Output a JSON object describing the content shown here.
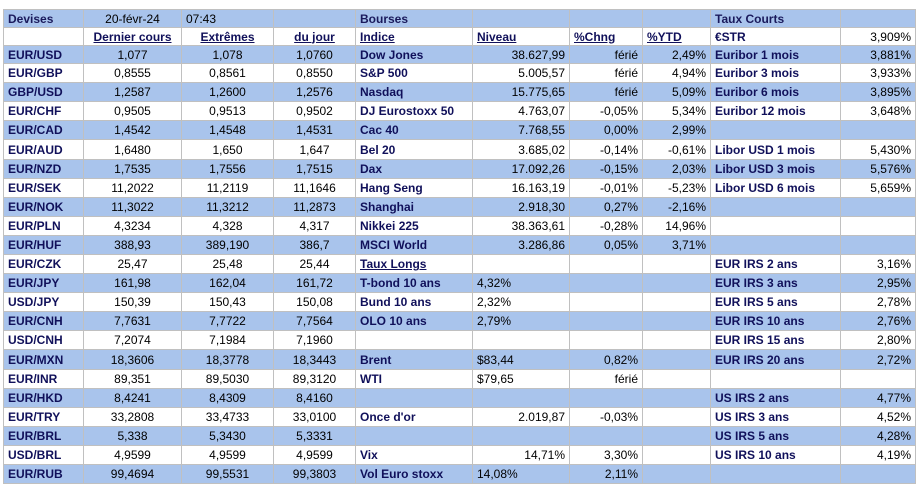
{
  "header": {
    "devises": "Devises",
    "date": "20-févr-24",
    "time": "07:43",
    "bourses": "Bourses",
    "taux_courts": "Taux Courts"
  },
  "subheader": {
    "dernier": "Dernier cours",
    "extremes": "Extrêmes",
    "dujour": "du jour",
    "indice": "Indice",
    "niveau": "Niveau",
    "chng": "%Chng",
    "ytd": "%YTD",
    "estr_label": "€STR",
    "estr_value": "3,909%"
  },
  "rows": [
    {
      "fx": "EUR/USD",
      "last": "1,077",
      "hi": "1,078",
      "lo": "1,0760",
      "idx": "Dow Jones",
      "lvl": "38.627,99",
      "chg": "férié",
      "ytd": "2,49%",
      "rate": "Euribor 1 mois",
      "rval": "3,881%",
      "bg": "blue"
    },
    {
      "fx": "EUR/GBP",
      "last": "0,8555",
      "hi": "0,8561",
      "lo": "0,8550",
      "idx": "S&P 500",
      "lvl": "5.005,57",
      "chg": "férié",
      "ytd": "4,94%",
      "rate": "Euribor 3 mois",
      "rval": "3,933%",
      "bg": "white"
    },
    {
      "fx": "GBP/USD",
      "last": "1,2587",
      "hi": "1,2600",
      "lo": "1,2576",
      "idx": "Nasdaq",
      "lvl": "15.775,65",
      "chg": "férié",
      "ytd": "5,09%",
      "rate": "Euribor 6 mois",
      "rval": "3,895%",
      "bg": "blue"
    },
    {
      "fx": "EUR/CHF",
      "last": "0,9505",
      "hi": "0,9513",
      "lo": "0,9502",
      "idx": "DJ Eurostoxx 50",
      "lvl": "4.763,07",
      "chg": "-0,05%",
      "ytd": "5,34%",
      "rate": "Euribor 12 mois",
      "rval": "3,648%",
      "bg": "white"
    },
    {
      "fx": "EUR/CAD",
      "last": "1,4542",
      "hi": "1,4548",
      "lo": "1,4531",
      "idx": "Cac 40",
      "lvl": "7.768,55",
      "chg": "0,00%",
      "ytd": "2,99%",
      "rate": "",
      "rval": "",
      "bg": "blue"
    },
    {
      "fx": "EUR/AUD",
      "last": "1,6480",
      "hi": "1,650",
      "lo": "1,647",
      "idx": "Bel 20",
      "lvl": "3.685,02",
      "chg": "-0,14%",
      "ytd": "-0,61%",
      "rate": "Libor USD 1 mois",
      "rval": "5,430%",
      "bg": "white"
    },
    {
      "fx": "EUR/NZD",
      "last": "1,7535",
      "hi": "1,7556",
      "lo": "1,7515",
      "idx": "Dax",
      "lvl": "17.092,26",
      "chg": "-0,15%",
      "ytd": "2,03%",
      "rate": "Libor USD 3 mois",
      "rval": "5,576%",
      "bg": "blue"
    },
    {
      "fx": "EUR/SEK",
      "last": "11,2022",
      "hi": "11,2119",
      "lo": "11,1646",
      "idx": "Hang Seng",
      "lvl": "16.163,19",
      "chg": "-0,01%",
      "ytd": "-5,23%",
      "rate": "Libor USD 6 mois",
      "rval": "5,659%",
      "bg": "white"
    },
    {
      "fx": "EUR/NOK",
      "last": "11,3022",
      "hi": "11,3212",
      "lo": "11,2873",
      "idx": "Shanghai",
      "lvl": "2.918,30",
      "chg": "0,27%",
      "ytd": "-2,16%",
      "rate": "",
      "rval": "",
      "bg": "blue"
    },
    {
      "fx": "EUR/PLN",
      "last": "4,3234",
      "hi": "4,328",
      "lo": "4,317",
      "idx": "Nikkei 225",
      "lvl": "38.363,61",
      "chg": "-0,28%",
      "ytd": "14,96%",
      "rate": "",
      "rval": "",
      "bg": "white"
    },
    {
      "fx": "EUR/HUF",
      "last": "388,93",
      "hi": "389,190",
      "lo": "386,7",
      "idx": "MSCI World",
      "lvl": "3.286,86",
      "chg": "0,05%",
      "ytd": "3,71%",
      "rate": "",
      "rval": "",
      "bg": "blue"
    },
    {
      "fx": "EUR/CZK",
      "last": "25,47",
      "hi": "25,48",
      "lo": "25,44",
      "idx": "Taux Longs",
      "lvl": "",
      "chg": "",
      "ytd": "",
      "rate": "EUR IRS 2 ans",
      "rval": "3,16%",
      "bg": "white",
      "idx_u": true
    },
    {
      "fx": "EUR/JPY",
      "last": "161,98",
      "hi": "162,04",
      "lo": "161,72",
      "idx": "T-bond 10 ans",
      "lvl": "4,32%",
      "chg": "",
      "ytd": "",
      "rate": "EUR IRS 3 ans",
      "rval": "2,95%",
      "bg": "blue",
      "lvl_left": true
    },
    {
      "fx": "USD/JPY",
      "last": "150,39",
      "hi": "150,43",
      "lo": "150,08",
      "idx": "Bund 10 ans",
      "lvl": "2,32%",
      "chg": "",
      "ytd": "",
      "rate": "EUR IRS 5 ans",
      "rval": "2,78%",
      "bg": "white",
      "lvl_left": true
    },
    {
      "fx": "EUR/CNH",
      "last": "7,7631",
      "hi": "7,7722",
      "lo": "7,7564",
      "idx": "OLO 10 ans",
      "lvl": "2,79%",
      "chg": "",
      "ytd": "",
      "rate": "EUR IRS 10 ans",
      "rval": "2,76%",
      "bg": "blue",
      "lvl_left": true
    },
    {
      "fx": "USD/CNH",
      "last": "7,2074",
      "hi": "7,1984",
      "lo": "7,1960",
      "idx": "",
      "lvl": "",
      "chg": "",
      "ytd": "",
      "rate": "EUR IRS 15 ans",
      "rval": "2,80%",
      "bg": "white"
    },
    {
      "fx": "EUR/MXN",
      "last": "18,3606",
      "hi": "18,3778",
      "lo": "18,3443",
      "idx": "Brent",
      "lvl": "$83,44",
      "chg": "0,82%",
      "ytd": "",
      "rate": "EUR IRS 20 ans",
      "rval": "2,72%",
      "bg": "blue",
      "lvl_left": true
    },
    {
      "fx": "EUR/INR",
      "last": "89,351",
      "hi": "89,5030",
      "lo": "89,3120",
      "idx": "WTI",
      "lvl": "$79,65",
      "chg": "férié",
      "ytd": "",
      "rate": "",
      "rval": "",
      "bg": "white",
      "lvl_left": true
    },
    {
      "fx": "EUR/HKD",
      "last": "8,4241",
      "hi": "8,4309",
      "lo": "8,4160",
      "idx": "",
      "lvl": "",
      "chg": "",
      "ytd": "",
      "rate": "US IRS 2 ans",
      "rval": "4,77%",
      "bg": "blue"
    },
    {
      "fx": "EUR/TRY",
      "last": "33,2808",
      "hi": "33,4733",
      "lo": "33,0100",
      "idx": "Once d'or",
      "lvl": "2.019,87",
      "chg": "-0,03%",
      "ytd": "",
      "rate": "US IRS 3 ans",
      "rval": "4,52%",
      "bg": "white"
    },
    {
      "fx": "EUR/BRL",
      "last": "5,338",
      "hi": "5,3430",
      "lo": "5,3331",
      "idx": "",
      "lvl": "",
      "chg": "",
      "ytd": "",
      "rate": "US IRS 5 ans",
      "rval": "4,28%",
      "bg": "blue"
    },
    {
      "fx": "USD/BRL",
      "last": "4,9599",
      "hi": "4,9599",
      "lo": "4,9599",
      "idx": "Vix",
      "lvl": "14,71%",
      "chg": "3,30%",
      "ytd": "",
      "rate": "US IRS 10 ans",
      "rval": "4,19%",
      "bg": "white"
    },
    {
      "fx": "EUR/RUB",
      "last": "99,4694",
      "hi": "99,5531",
      "lo": "99,3803",
      "idx": "Vol Euro stoxx",
      "lvl": "14,08%",
      "chg": "2,11%",
      "ytd": "",
      "rate": "",
      "rval": "",
      "bg": "blue",
      "lvl_left": true
    }
  ]
}
